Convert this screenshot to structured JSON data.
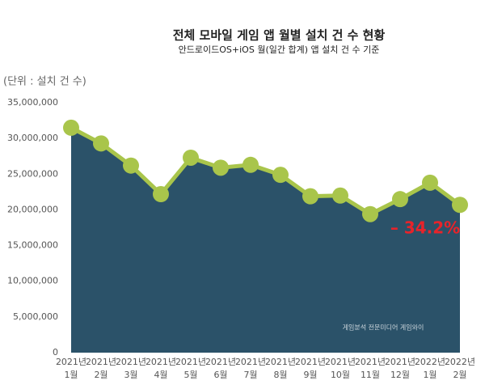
{
  "chart_data": {
    "type": "area",
    "title": "전체 모바일 게임 앱 월별 설치 건 수 현황",
    "subtitle": "안드로이드OS+iOS 월(일간 합계) 앱 설치 건 수 기준",
    "y_label": "(단위 : 설치 건 수)",
    "annotation": "– 34.2%",
    "watermark": "게임분석 전문미디어 게임와이",
    "categories": [
      [
        "2021년",
        "1월"
      ],
      [
        "2021년",
        "2월"
      ],
      [
        "2021년",
        "3월"
      ],
      [
        "2021년",
        "4월"
      ],
      [
        "2021년",
        "5월"
      ],
      [
        "2021년",
        "6월"
      ],
      [
        "2021년",
        "7월"
      ],
      [
        "2021년",
        "8월"
      ],
      [
        "2021년",
        "9월"
      ],
      [
        "2021년",
        "10월"
      ],
      [
        "2021년",
        "11월"
      ],
      [
        "2021년",
        "12월"
      ],
      [
        "2022년",
        "1월"
      ],
      [
        "2022년",
        "2월"
      ]
    ],
    "values": [
      31500000,
      29300000,
      26200000,
      22200000,
      27300000,
      25900000,
      26300000,
      24900000,
      21900000,
      22000000,
      19400000,
      21500000,
      23800000,
      20700000
    ],
    "area_color": "#2b5269",
    "line_color": "#a9c54b",
    "annotation_color": "#e8232a",
    "ylim": [
      0,
      35000000
    ],
    "yticks": [
      0,
      {
        "value": 5000000,
        "label": "5,000,000"
      },
      {
        "value": 10000000,
        "label": "10,000,000"
      },
      {
        "value": 15000000,
        "label": "15,000,000"
      },
      {
        "value": 20000000,
        "label": "20,000,000"
      },
      {
        "value": 25000000,
        "label": "25,000,000"
      },
      {
        "value": 30000000,
        "label": "30,000,000"
      },
      {
        "value": 35000000,
        "label": "35,000,000"
      }
    ],
    "grid": false
  }
}
